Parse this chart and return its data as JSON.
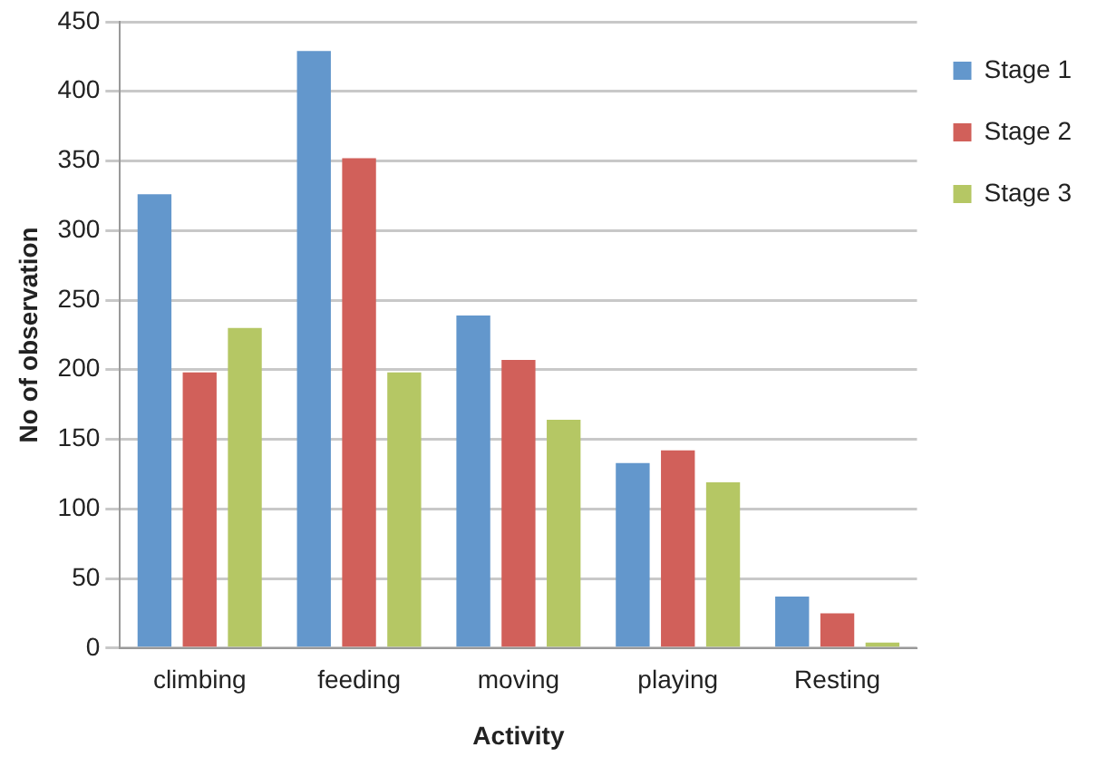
{
  "chart_data": {
    "type": "bar",
    "xlabel": "Activity",
    "ylabel": "No of observation",
    "categories": [
      "climbing",
      "feeding",
      "moving",
      "playing",
      "Resting"
    ],
    "series": [
      {
        "name": "Stage 1",
        "color": "#6397cc",
        "values": [
          326,
          429,
          239,
          133,
          37
        ]
      },
      {
        "name": "Stage 2",
        "color": "#d1605a",
        "values": [
          198,
          352,
          207,
          142,
          25
        ]
      },
      {
        "name": "Stage 3",
        "color": "#b5c764",
        "values": [
          230,
          198,
          164,
          119,
          4
        ]
      }
    ],
    "ylim": [
      0,
      450
    ],
    "yticks": [
      0,
      50,
      100,
      150,
      200,
      250,
      300,
      350,
      400,
      450
    ],
    "grid": "y",
    "legend": "top right"
  }
}
